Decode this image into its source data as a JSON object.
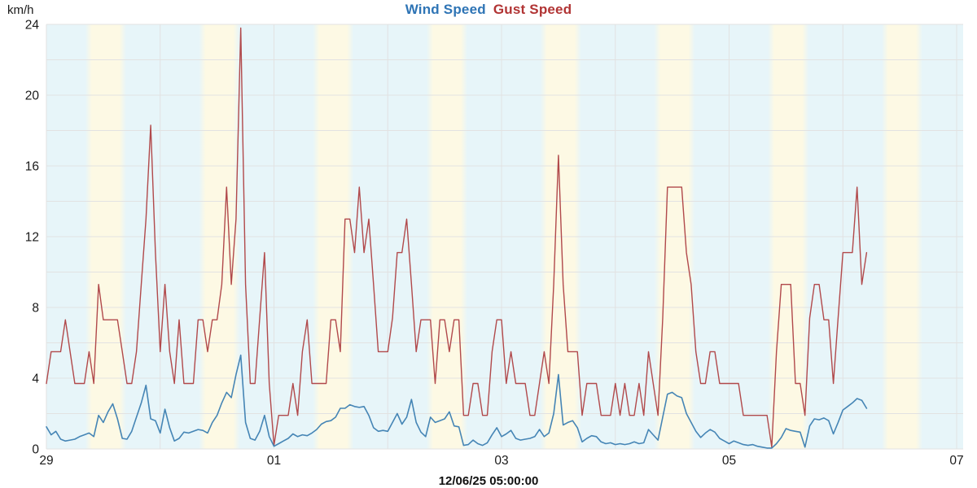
{
  "title": {
    "wind_label": "Wind Speed",
    "gust_label": "Gust Speed"
  },
  "y_axis": {
    "unit_label": "km/h",
    "ticks": [
      0,
      4,
      8,
      12,
      16,
      20,
      24
    ],
    "min": 0,
    "max": 24,
    "minor_gridline_step": 2
  },
  "x_axis": {
    "tick_labels": [
      "29",
      "01",
      "03",
      "05",
      "07"
    ],
    "tick_day_positions": [
      0,
      2,
      4,
      6,
      8
    ],
    "total_days": 8,
    "day_gridlines": true
  },
  "footer": {
    "timestamp": "12/06/25 05:00:00"
  },
  "colors": {
    "title_wind": "#2e74b5",
    "title_gust": "#b13434",
    "wind_line": "#4585b5",
    "gust_line": "#b1494b",
    "night_band": "#e7f5f9",
    "day_band": "#fdf9e4",
    "gridline": "#e2e2e2",
    "tick_text": "#1a1a1a"
  },
  "chart_data": {
    "type": "line",
    "title": "Wind Speed Gust Speed",
    "xlabel": "",
    "ylabel": "km/h",
    "ylim": [
      0,
      24
    ],
    "x_unit": "hours since 11/29 00:00, 1 point per hour, ending 12/06 05:00",
    "grid": true,
    "legend_position": "top-title",
    "background_bands": {
      "day_start_hour": 8.2,
      "day_end_hour": 16.8,
      "note": "yellow daytime band repeating each day over cyan night background"
    },
    "series": [
      {
        "name": "Wind Speed",
        "color": "#4585b5",
        "values": [
          1.25,
          0.8,
          1.0,
          0.55,
          0.45,
          0.5,
          0.55,
          0.7,
          0.8,
          0.9,
          0.7,
          1.9,
          1.5,
          2.1,
          2.55,
          1.7,
          0.6,
          0.55,
          1.0,
          1.8,
          2.6,
          3.6,
          1.7,
          1.6,
          0.9,
          2.25,
          1.2,
          0.45,
          0.6,
          0.95,
          0.9,
          1.0,
          1.1,
          1.05,
          0.9,
          1.5,
          1.9,
          2.6,
          3.2,
          2.9,
          4.2,
          5.3,
          1.5,
          0.6,
          0.5,
          1.0,
          1.9,
          0.7,
          0.15,
          0.3,
          0.45,
          0.6,
          0.85,
          0.7,
          0.8,
          0.75,
          0.9,
          1.1,
          1.4,
          1.55,
          1.6,
          1.8,
          2.3,
          2.3,
          2.5,
          2.4,
          2.35,
          2.4,
          1.9,
          1.2,
          1.0,
          1.05,
          1.0,
          1.5,
          2.0,
          1.4,
          1.8,
          2.8,
          1.5,
          0.95,
          0.7,
          1.8,
          1.5,
          1.6,
          1.7,
          2.1,
          1.3,
          1.25,
          0.2,
          0.25,
          0.5,
          0.3,
          0.2,
          0.35,
          0.8,
          1.2,
          0.7,
          0.85,
          1.05,
          0.6,
          0.5,
          0.55,
          0.6,
          0.7,
          1.1,
          0.7,
          0.9,
          2.0,
          4.2,
          1.35,
          1.5,
          1.6,
          1.2,
          0.4,
          0.6,
          0.75,
          0.7,
          0.4,
          0.3,
          0.35,
          0.25,
          0.3,
          0.25,
          0.3,
          0.4,
          0.3,
          0.35,
          1.1,
          0.8,
          0.5,
          1.8,
          3.1,
          3.2,
          3.0,
          2.9,
          2.0,
          1.5,
          1.0,
          0.65,
          0.9,
          1.1,
          0.95,
          0.6,
          0.45,
          0.3,
          0.45,
          0.35,
          0.25,
          0.2,
          0.25,
          0.15,
          0.1,
          0.05,
          0.05,
          0.3,
          0.65,
          1.15,
          1.05,
          1.0,
          0.95,
          0.1,
          1.3,
          1.7,
          1.65,
          1.75,
          1.6,
          0.85,
          1.5,
          2.2,
          2.4,
          2.6,
          2.85,
          2.75,
          2.3
        ]
      },
      {
        "name": "Gust Speed",
        "color": "#b1494b",
        "values": [
          3.7,
          5.5,
          5.5,
          5.5,
          7.3,
          5.5,
          3.7,
          3.7,
          3.7,
          5.5,
          3.7,
          9.3,
          7.3,
          7.3,
          7.3,
          7.3,
          5.5,
          3.7,
          3.7,
          5.5,
          9.3,
          13.0,
          18.3,
          11.1,
          5.5,
          9.3,
          5.5,
          3.7,
          7.3,
          3.7,
          3.7,
          3.7,
          7.3,
          7.3,
          5.5,
          7.3,
          7.3,
          9.3,
          14.8,
          9.3,
          13.0,
          23.8,
          9.3,
          3.7,
          3.7,
          7.4,
          11.1,
          3.7,
          0.2,
          1.9,
          1.9,
          1.9,
          3.7,
          1.9,
          5.5,
          7.3,
          3.7,
          3.7,
          3.7,
          3.7,
          7.3,
          7.3,
          5.5,
          13.0,
          13.0,
          11.1,
          14.8,
          11.1,
          13.0,
          9.3,
          5.5,
          5.5,
          5.5,
          7.4,
          11.1,
          11.1,
          13.0,
          9.3,
          5.5,
          7.3,
          7.3,
          7.3,
          3.7,
          7.3,
          7.3,
          5.5,
          7.3,
          7.3,
          1.9,
          1.9,
          3.7,
          3.7,
          1.9,
          1.9,
          5.5,
          7.3,
          7.3,
          3.7,
          5.5,
          3.7,
          3.7,
          3.7,
          1.9,
          1.9,
          3.7,
          5.5,
          3.7,
          9.3,
          16.6,
          9.3,
          5.5,
          5.5,
          5.5,
          1.9,
          3.7,
          3.7,
          3.7,
          1.9,
          1.9,
          1.9,
          3.7,
          1.9,
          3.7,
          1.9,
          1.9,
          3.7,
          1.9,
          5.5,
          3.7,
          1.9,
          7.4,
          14.8,
          14.8,
          14.8,
          14.8,
          11.1,
          9.3,
          5.5,
          3.7,
          3.7,
          5.5,
          5.5,
          3.7,
          3.7,
          3.7,
          3.7,
          3.7,
          1.9,
          1.9,
          1.9,
          1.9,
          1.9,
          1.9,
          0.1,
          5.5,
          9.3,
          9.3,
          9.3,
          3.7,
          3.7,
          1.9,
          7.4,
          9.3,
          9.3,
          7.3,
          7.3,
          3.7,
          7.4,
          11.1,
          11.1,
          11.1,
          14.8,
          9.3,
          11.1
        ]
      }
    ]
  }
}
